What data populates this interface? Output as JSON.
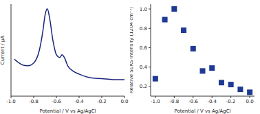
{
  "chart_data": [
    {
      "type": "line",
      "x_label": "Potential / V vs Ag/AgCl",
      "y_label": "Current / μA",
      "x": [
        -0.97,
        -0.95,
        -0.9,
        -0.85,
        -0.8,
        -0.75,
        -0.72,
        -0.7,
        -0.68,
        -0.66,
        -0.63,
        -0.6,
        -0.57,
        -0.55,
        -0.53,
        -0.5,
        -0.45,
        -0.4,
        -0.3,
        -0.2,
        -0.1,
        0.0
      ],
      "values": [
        0.4,
        0.38,
        0.34,
        0.33,
        0.36,
        0.5,
        0.7,
        0.88,
        0.95,
        0.85,
        0.6,
        0.45,
        0.42,
        0.45,
        0.42,
        0.33,
        0.27,
        0.24,
        0.2,
        0.19,
        0.18,
        0.18
      ],
      "color": "#1a237e",
      "xlim": [
        -1.0,
        0.0
      ],
      "xticks": [
        {
          "value": -1.0,
          "label": "-1.0"
        },
        -0.8,
        -0.6,
        -0.4,
        -0.2,
        {
          "value": 0.0,
          "label": "0.0"
        }
      ],
      "ylim": [
        0,
        1
      ],
      "tick_labels": "x"
    },
    {
      "type": "scatter",
      "x_label": "Potential / V vs Ag/AgCl",
      "y_label": "Relative SERS Intensity (1204 cm⁻¹)",
      "x": [
        -1.0,
        -0.9,
        -0.8,
        -0.7,
        -0.6,
        -0.5,
        -0.4,
        -0.3,
        -0.2,
        -0.1,
        0.0
      ],
      "values": [
        0.28,
        0.89,
        1.0,
        0.78,
        0.59,
        0.36,
        0.39,
        0.24,
        0.22,
        0.17,
        0.14
      ],
      "color": "#1f3a93",
      "marker": "square",
      "xlim": [
        -1.05,
        0.05
      ],
      "xticks": [
        {
          "value": -1.0,
          "label": "-1.0"
        },
        -0.8,
        -0.6,
        -0.4,
        -0.2,
        {
          "value": 0.0,
          "label": "0.0"
        }
      ],
      "ylim": [
        0.1,
        1.05
      ],
      "yticks": [
        0.2,
        0.4,
        0.6,
        0.8,
        {
          "value": 1.0,
          "label": "1.0"
        }
      ]
    }
  ]
}
